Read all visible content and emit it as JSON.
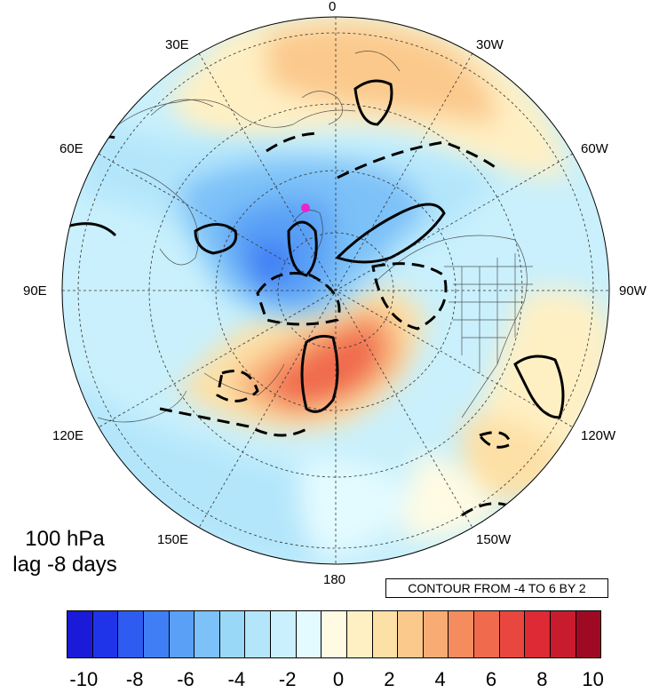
{
  "title": {
    "line1": "100 hPa",
    "line2": "lag -8 days"
  },
  "contour_note": "CONTOUR FROM -4 TO 6 BY 2",
  "longitude_labels": {
    "lon_0": "0",
    "lon_30w": "30W",
    "lon_60w": "60W",
    "lon_90w": "90W",
    "lon_120w": "120W",
    "lon_150w": "150W",
    "lon_180": "180",
    "lon_150e": "150E",
    "lon_120e": "120E",
    "lon_90e": "90E",
    "lon_60e": "60E",
    "lon_30e": "30E"
  },
  "colorbar": {
    "levels": [
      -10,
      -9,
      -8,
      -7,
      -6,
      -5,
      -4,
      -3,
      -2,
      -1,
      0,
      1,
      2,
      3,
      4,
      5,
      6,
      7,
      8,
      9,
      10
    ],
    "colors": [
      "#1a1ad8",
      "#1f34e8",
      "#2e5cf0",
      "#3f7ef4",
      "#5aa0f6",
      "#7cc1f8",
      "#9ad8f8",
      "#b4e6fb",
      "#c9f0fc",
      "#e3fbff",
      "#fffbe3",
      "#fff0c4",
      "#fde0a6",
      "#fbc98c",
      "#f8ac74",
      "#f48c5e",
      "#f06a4e",
      "#ea4640",
      "#dd2a34",
      "#c81c2e",
      "#9e0a24"
    ],
    "tick_labels": [
      "-10",
      "-8",
      "-6",
      "-4",
      "-2",
      "0",
      "2",
      "4",
      "6",
      "8",
      "10"
    ]
  },
  "map_features": {
    "projection": "north-polar-stereographic",
    "marker": "magenta-star",
    "contour_lines": "solid-positive-dashed-negative"
  }
}
